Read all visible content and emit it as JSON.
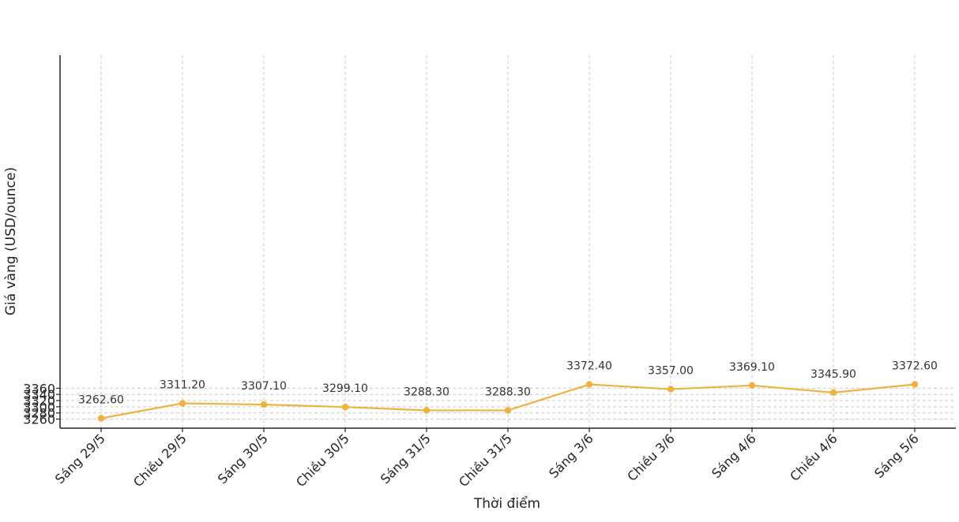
{
  "chart_data": {
    "type": "line",
    "title": "",
    "xlabel": "Thời điểm",
    "ylabel": "Giá vàng (USD/ounce)",
    "ylim": [
      3257,
      3378
    ],
    "yticks": [
      3260,
      3280,
      3300,
      3320,
      3340,
      3360
    ],
    "grid": true,
    "categories": [
      "Sáng 29/5",
      "Chiều 29/5",
      "Sáng 30/5",
      "Chiều 30/5",
      "Sáng 31/5",
      "Chiều 31/5",
      "Sáng 3/6",
      "Chiều 3/6",
      "Sáng 4/6",
      "Chiều 4/6",
      "Sáng 5/6"
    ],
    "series": [
      {
        "values": [
          3262.6,
          3311.2,
          3307.1,
          3299.1,
          3288.3,
          3288.3,
          3372.4,
          3357.0,
          3369.1,
          3345.9,
          3372.6
        ],
        "data_labels": [
          "3262.60",
          "3311.20",
          "3307.10",
          "3299.10",
          "3288.30",
          "3288.30",
          "3372.40",
          "3357.00",
          "3369.10",
          "3345.90",
          "3372.60"
        ],
        "color": "#f0b23c"
      }
    ]
  }
}
